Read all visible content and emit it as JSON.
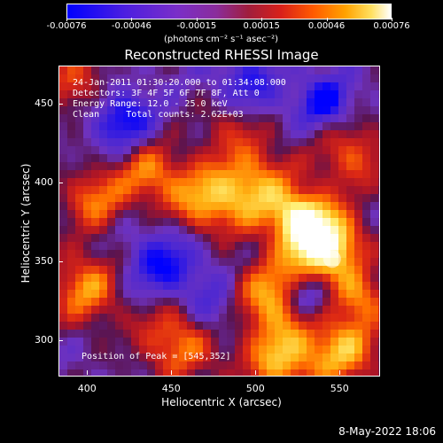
{
  "colorbar": {
    "ticks": [
      "-0.00076",
      "-0.00046",
      "-0.00015",
      "0.00015",
      "0.00046",
      "0.00076"
    ],
    "units": "(photons cm⁻² s⁻¹ asec⁻²)"
  },
  "title": "Reconstructed RHESSI Image",
  "info": {
    "line1": "24-Jan-2011 01:30:20.000 to 01:34:08.000",
    "line2": "Detectors: 3F 4F 5F 6F 7F 8F, Att 0",
    "line3": "Energy Range: 12.0 - 25.0 keV",
    "line4": "Clean     Total counts: 2.62E+03"
  },
  "peak": "Position of Peak = [545,352]",
  "xaxis": {
    "label": "Heliocentric X (arcsec)",
    "ticks": [
      "400",
      "450",
      "500",
      "550"
    ]
  },
  "yaxis": {
    "label": "Heliocentric Y (arcsec)",
    "ticks": [
      "450",
      "400",
      "350",
      "300"
    ]
  },
  "timestamp": "8-May-2022 18:06",
  "chart_data": {
    "type": "heatmap",
    "title": "Reconstructed RHESSI Image",
    "xlabel": "Heliocentric X (arcsec)",
    "ylabel": "Heliocentric Y (arcsec)",
    "xlim": [
      383,
      573
    ],
    "ylim": [
      278,
      474
    ],
    "x_ticks": [
      400,
      450,
      500,
      550
    ],
    "y_ticks": [
      300,
      350,
      400,
      450
    ],
    "colorbar_range": [
      -0.00076,
      0.00076
    ],
    "colormap": [
      "#0000ff",
      "#7a2ec8",
      "#a01e3c",
      "#ff5a00",
      "#ffa200",
      "#ffffff"
    ],
    "peak": {
      "x": 545,
      "y": 352
    }
  }
}
